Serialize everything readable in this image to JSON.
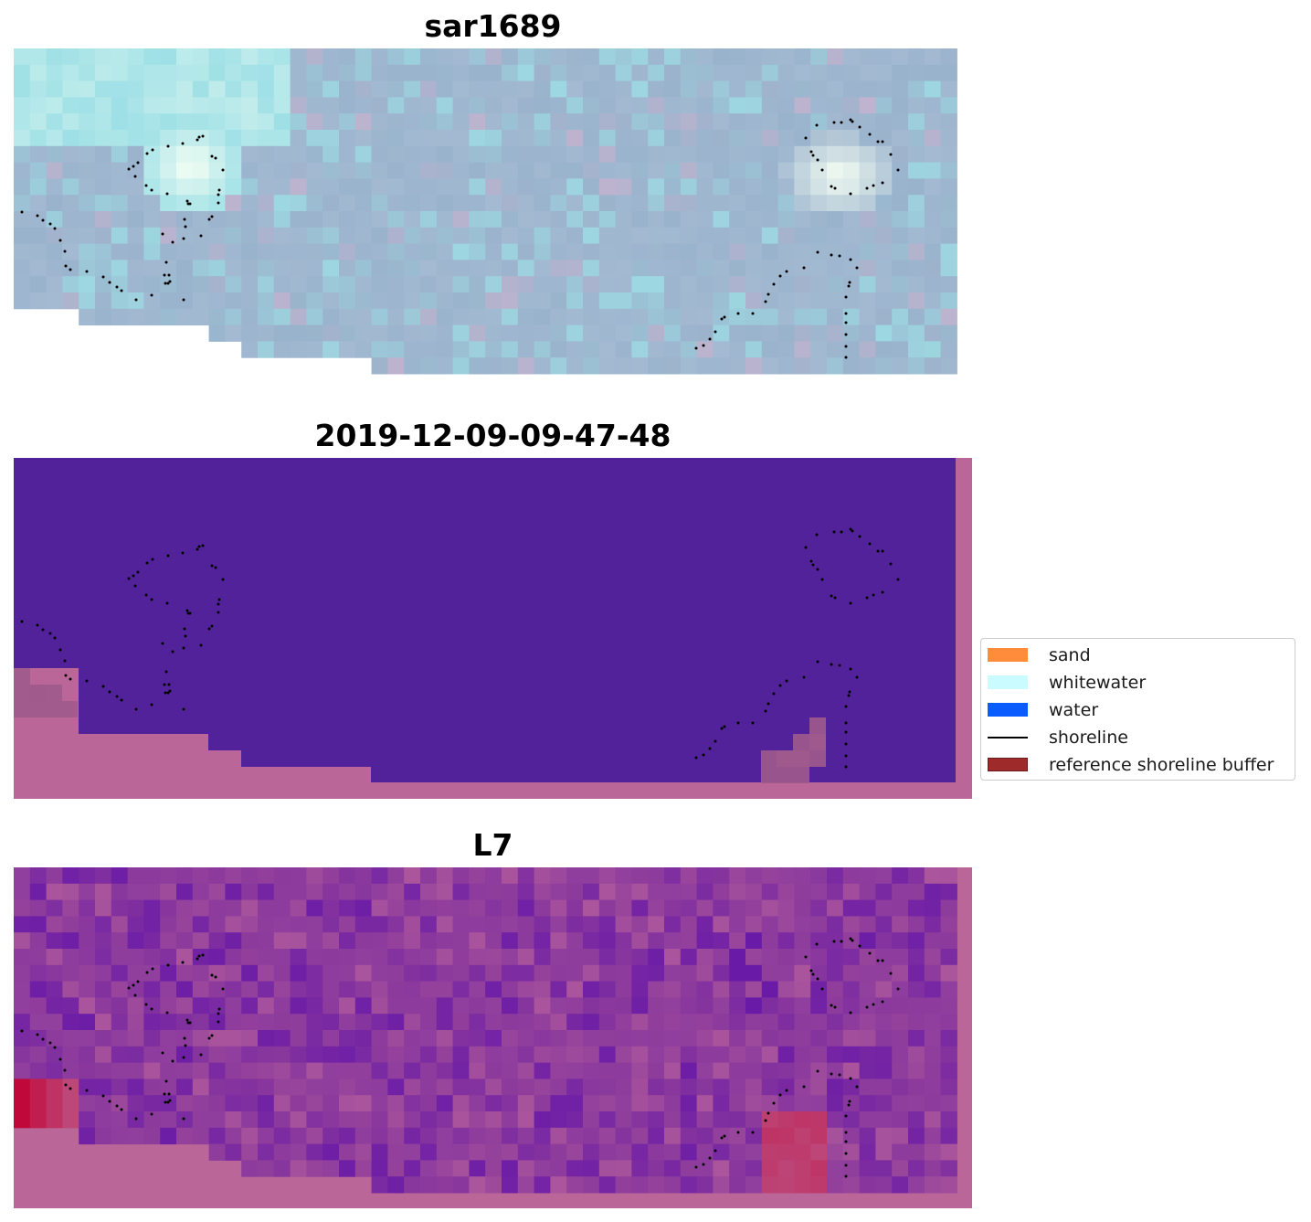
{
  "chart_data": [
    {
      "type": "image",
      "title": "sar1689",
      "description_colors": {
        "base": "#9ab3cc",
        "cyan": "#9ee0e6",
        "white": "#f6fff4",
        "pink": "#c8b3d0"
      },
      "shoreline_points": "dotted"
    },
    {
      "type": "image",
      "title": "2019-12-09-09-47-48",
      "description_colors": {
        "water": "#52229a",
        "nodata": "#bb6698"
      }
    },
    {
      "type": "image",
      "title": "L7",
      "description_colors": {
        "base": "#8c3a9c",
        "nodata": "#bb6698",
        "hot": "#c0093a"
      }
    }
  ],
  "legend": {
    "items": [
      {
        "label": "sand",
        "color": "#ff8c3a",
        "kind": "patch"
      },
      {
        "label": "whitewater",
        "color": "#c9fbff",
        "kind": "patch"
      },
      {
        "label": "water",
        "color": "#0a5cff",
        "kind": "patch"
      },
      {
        "label": "shoreline",
        "color": "#000000",
        "kind": "line"
      },
      {
        "label": "reference shoreline buffer",
        "color": "#9e2a2a",
        "kind": "patch"
      }
    ]
  }
}
